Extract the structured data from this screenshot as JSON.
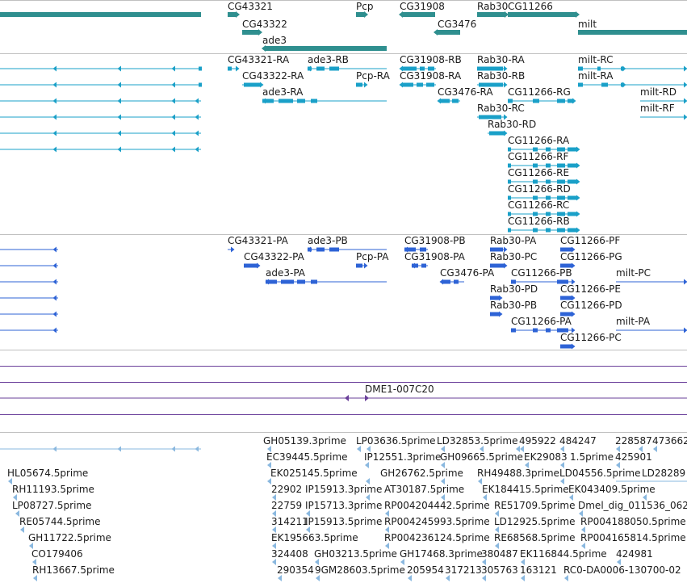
{
  "colors": {
    "gene": "#2f8f8f",
    "transcript": "#1aa0c8",
    "protein": "#2e63d6",
    "purple_line": "#6a3f9a",
    "primer": "#8ab8df",
    "divider": "#c0c0c0"
  },
  "genes": [
    {
      "label": "CG43321"
    },
    {
      "label": "CG43322"
    },
    {
      "label": "ade3"
    },
    {
      "label": "Pcp"
    },
    {
      "label": "CG31908"
    },
    {
      "label": "CG3476"
    },
    {
      "label": "Rab30"
    },
    {
      "label": "CG11266"
    },
    {
      "label": "milt"
    }
  ],
  "transcripts": [
    {
      "label": "CG43321-RA"
    },
    {
      "label": "ade3-RB"
    },
    {
      "label": "CG31908-RB"
    },
    {
      "label": "Rab30-RA"
    },
    {
      "label": "milt-RC"
    },
    {
      "label": "CG43322-RA"
    },
    {
      "label": "Pcp-RA"
    },
    {
      "label": "CG31908-RA"
    },
    {
      "label": "Rab30-RB"
    },
    {
      "label": "milt-RA"
    },
    {
      "label": "ade3-RA"
    },
    {
      "label": "CG3476-RA"
    },
    {
      "label": "CG11266-RG"
    },
    {
      "label": "milt-RD"
    },
    {
      "label": "Rab30-RC"
    },
    {
      "label": "milt-RF"
    },
    {
      "label": "Rab30-RD"
    },
    {
      "label": "CG11266-RA"
    },
    {
      "label": "CG11266-RF"
    },
    {
      "label": "CG11266-RE"
    },
    {
      "label": "CG11266-RD"
    },
    {
      "label": "CG11266-RC"
    },
    {
      "label": "CG11266-RB"
    }
  ],
  "proteins": [
    {
      "label": "CG43321-PA"
    },
    {
      "label": "ade3-PB"
    },
    {
      "label": "CG31908-PB"
    },
    {
      "label": "Rab30-PA"
    },
    {
      "label": "CG11266-PF"
    },
    {
      "label": "CG43322-PA"
    },
    {
      "label": "Pcp-PA"
    },
    {
      "label": "CG31908-PA"
    },
    {
      "label": "Rab30-PC"
    },
    {
      "label": "CG11266-PG"
    },
    {
      "label": "ade3-PA"
    },
    {
      "label": "CG3476-PA"
    },
    {
      "label": "CG11266-PB"
    },
    {
      "label": "milt-PC"
    },
    {
      "label": "Rab30-PD"
    },
    {
      "label": "CG11266-PE"
    },
    {
      "label": "Rab30-PB"
    },
    {
      "label": "CG11266-PD"
    },
    {
      "label": "CG11266-PA"
    },
    {
      "label": "milt-PA"
    },
    {
      "label": "CG11266-PC"
    }
  ],
  "misc": [
    {
      "label": "DME1-007C20"
    }
  ],
  "primers": [
    {
      "label": "GH05139.3prime"
    },
    {
      "label": "LP03636.5prime"
    },
    {
      "label": "LD32853.5prime"
    },
    {
      "label": "495922"
    },
    {
      "label": "484247"
    },
    {
      "label": "228587"
    },
    {
      "label": "473662"
    },
    {
      "label": "EC39445.5prime"
    },
    {
      "label": "IP12551.3prime"
    },
    {
      "label": "GH09665.5prime"
    },
    {
      "label": "EK29083"
    },
    {
      "label": "1.5prime"
    },
    {
      "label": "425901"
    },
    {
      "label": "HL05674.5prime"
    },
    {
      "label": "EK025145.5prime"
    },
    {
      "label": "GH26762.5prime"
    },
    {
      "label": "RH49488.3prime"
    },
    {
      "label": "LD04556.5prime"
    },
    {
      "label": "LD28289"
    },
    {
      "label": "RH11193.5prime"
    },
    {
      "label": "22902"
    },
    {
      "label": "IP15913.3prime"
    },
    {
      "label": "AT30187.5prime"
    },
    {
      "label": "EK184415.5prime"
    },
    {
      "label": "EK043409.5prime"
    },
    {
      "label": "LP08727.5prime"
    },
    {
      "label": "22759"
    },
    {
      "label": "IP15713.3prime"
    },
    {
      "label": "RP004204442.5prime"
    },
    {
      "label": "RE51709.5prime"
    },
    {
      "label": "Dmel_dig_011536_062"
    },
    {
      "label": "RE05744.5prime"
    },
    {
      "label": "314211"
    },
    {
      "label": "IP15913.5prime"
    },
    {
      "label": "RP004245993.5prime"
    },
    {
      "label": "LD12925.5prime"
    },
    {
      "label": "RP004188050.5prime"
    },
    {
      "label": "GH11722.5prime"
    },
    {
      "label": "EK195663.5prime"
    },
    {
      "label": "RP004236124.5prime"
    },
    {
      "label": "RE68568.5prime"
    },
    {
      "label": "RP004165814.5prime"
    },
    {
      "label": "CO179406"
    },
    {
      "label": "324408"
    },
    {
      "label": "GH03213.5prime"
    },
    {
      "label": "GH17468.3prime"
    },
    {
      "label": "380487"
    },
    {
      "label": "EK116844.5prime"
    },
    {
      "label": "424981"
    },
    {
      "label": "RH13667.5prime"
    },
    {
      "label": "290354"
    },
    {
      "label": "9GM28603.5prime"
    },
    {
      "label": "205954"
    },
    {
      "label": "317213"
    },
    {
      "label": "305763"
    },
    {
      "label": "163121"
    },
    {
      "label": "RC0-DA0006-130700-02"
    }
  ]
}
